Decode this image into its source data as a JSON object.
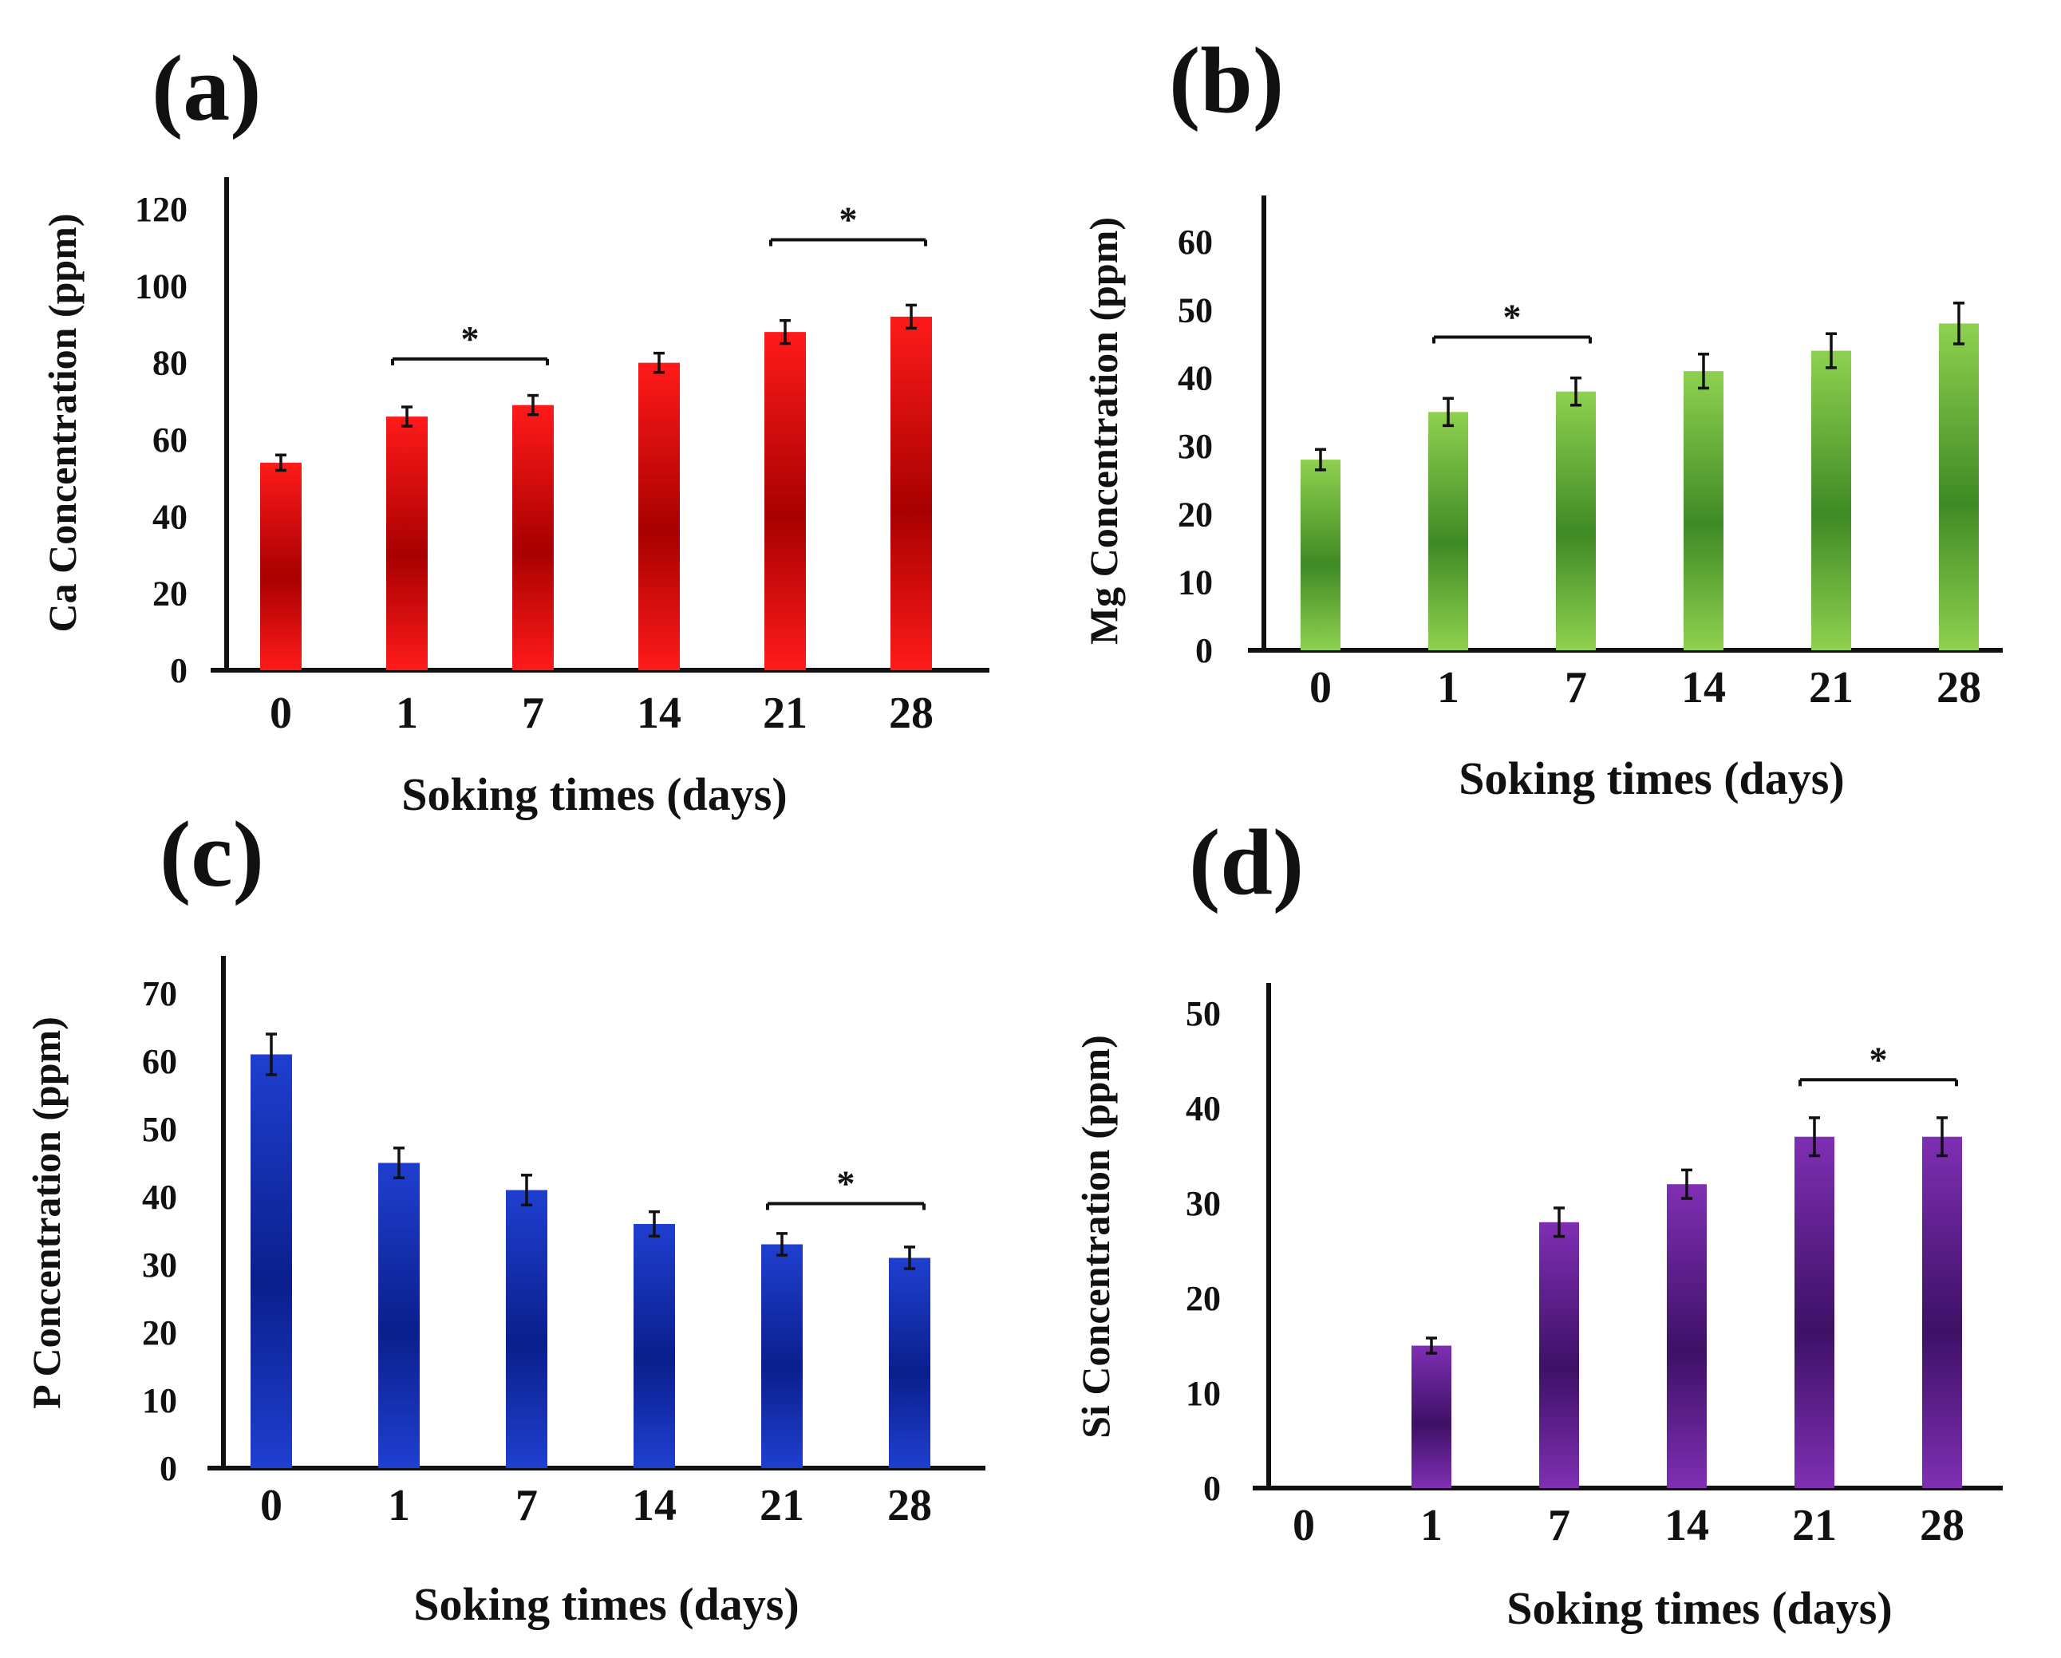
{
  "chart_data": [
    {
      "type": "bar",
      "panel_label": "(a)",
      "categories": [
        "0",
        "1",
        "7",
        "14",
        "21",
        "28"
      ],
      "values": [
        54,
        66,
        69,
        80,
        88,
        92
      ],
      "errors": [
        2,
        2.5,
        2.5,
        2.5,
        3,
        3
      ],
      "xlabel": "Soking times (days)",
      "ylabel": "Ca Concentration (ppm)",
      "ylim": [
        0,
        120
      ],
      "yticks": [
        "0",
        "20",
        "40",
        "60",
        "80",
        "100",
        "120"
      ],
      "color_light": "#ff1a1a",
      "color_dark": "#a80000",
      "significance": [
        {
          "from": 1,
          "to": 2,
          "y": 81,
          "label": "*"
        },
        {
          "from": 4,
          "to": 5,
          "y": 112,
          "label": "*"
        }
      ],
      "grid": false
    },
    {
      "type": "bar",
      "panel_label": "(b)",
      "categories": [
        "0",
        "1",
        "7",
        "14",
        "21",
        "28"
      ],
      "values": [
        28,
        35,
        38,
        41,
        44,
        48
      ],
      "errors": [
        1.5,
        2,
        2,
        2.5,
        2.5,
        3
      ],
      "xlabel": "Soking times (days)",
      "ylabel": "Mg Concentration (ppm)",
      "ylim": [
        0,
        60
      ],
      "yticks": [
        "0",
        "10",
        "20",
        "30",
        "40",
        "50",
        "60"
      ],
      "color_light": "#8fd14f",
      "color_dark": "#3f8a25",
      "significance": [
        {
          "from": 1,
          "to": 2,
          "y": 46,
          "label": "*"
        }
      ],
      "grid": false
    },
    {
      "type": "bar",
      "panel_label": "(c)",
      "categories": [
        "0",
        "1",
        "7",
        "14",
        "21",
        "28"
      ],
      "values": [
        61,
        45,
        41,
        36,
        33,
        31
      ],
      "errors": [
        3,
        2.2,
        2.2,
        1.8,
        1.6,
        1.6
      ],
      "xlabel": "Soking times (days)",
      "ylabel": "P Concentration (ppm)",
      "ylim": [
        0,
        70
      ],
      "yticks": [
        "0",
        "10",
        "20",
        "30",
        "40",
        "50",
        "60",
        "70"
      ],
      "color_light": "#1f3fd0",
      "color_dark": "#0a1f8c",
      "significance": [
        {
          "from": 4,
          "to": 5,
          "y": 39,
          "label": "*"
        }
      ],
      "grid": false
    },
    {
      "type": "bar",
      "panel_label": "(d)",
      "categories": [
        "0",
        "1",
        "7",
        "14",
        "21",
        "28"
      ],
      "values": [
        0,
        15,
        28,
        32,
        37,
        37
      ],
      "errors": [
        0,
        0.8,
        1.5,
        1.5,
        2,
        2
      ],
      "xlabel": "Soking times (days)",
      "ylabel": "Si Concentration (ppm)",
      "ylim": [
        0,
        50
      ],
      "yticks": [
        "0",
        "10",
        "20",
        "30",
        "40",
        "50"
      ],
      "color_light": "#7f2fb3",
      "color_dark": "#3d1166",
      "significance": [
        {
          "from": 4,
          "to": 5,
          "y": 43,
          "label": "*"
        }
      ],
      "grid": false
    }
  ]
}
